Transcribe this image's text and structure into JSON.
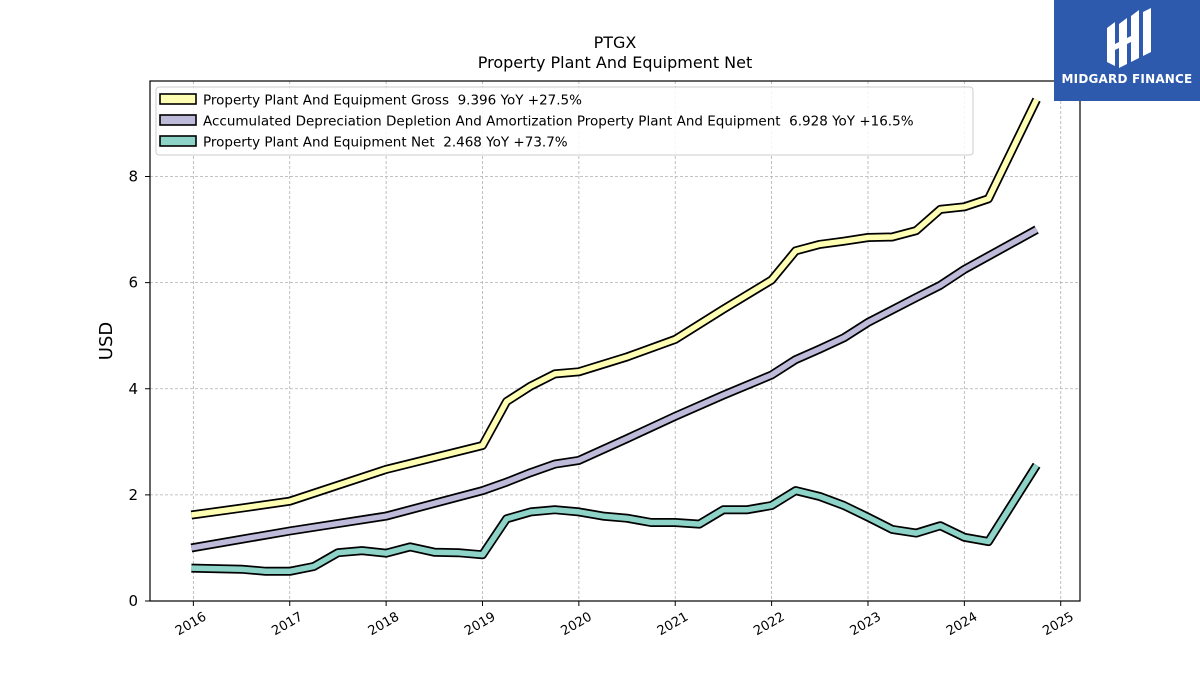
{
  "logo": {
    "text": "MIDGARD FINANCE"
  },
  "colors": {
    "gross": "#ffffb3",
    "depreciation": "#bebada",
    "net": "#8dd3c7",
    "outline": "#000000",
    "grid": "#b0b0b0",
    "logo_bg": "#2d5aad"
  },
  "chart_data": {
    "type": "line",
    "title": "PTGX",
    "subtitle": "Property Plant And Equipment Net",
    "ylabel": "USD",
    "xlabel": "",
    "xlim": [
      2015.55,
      2025.2
    ],
    "ylim": [
      0,
      9.8
    ],
    "xticks": [
      2016,
      2017,
      2018,
      2019,
      2020,
      2021,
      2022,
      2023,
      2024,
      2025
    ],
    "xtick_labels": [
      "2016",
      "2017",
      "2018",
      "2019",
      "2020",
      "2021",
      "2022",
      "2023",
      "2024",
      "2025"
    ],
    "yticks": [
      0,
      2,
      4,
      6,
      8
    ],
    "ytick_labels": [
      "0",
      "2",
      "4",
      "6",
      "8"
    ],
    "grid": true,
    "legend_position": "top-left",
    "series": [
      {
        "key": "gross",
        "name": "Property Plant And Equipment Gross  9.396 YoY +27.5%",
        "points": [
          [
            2015.98,
            1.62
          ],
          [
            2016.5,
            1.75
          ],
          [
            2017.0,
            1.88
          ],
          [
            2018.0,
            2.48
          ],
          [
            2019.0,
            2.93
          ],
          [
            2019.25,
            3.76
          ],
          [
            2019.5,
            4.05
          ],
          [
            2019.75,
            4.28
          ],
          [
            2020.0,
            4.32
          ],
          [
            2020.5,
            4.6
          ],
          [
            2021.0,
            4.93
          ],
          [
            2021.5,
            5.5
          ],
          [
            2022.0,
            6.05
          ],
          [
            2022.25,
            6.6
          ],
          [
            2022.5,
            6.72
          ],
          [
            2022.75,
            6.78
          ],
          [
            2023.0,
            6.85
          ],
          [
            2023.25,
            6.86
          ],
          [
            2023.5,
            6.98
          ],
          [
            2023.75,
            7.38
          ],
          [
            2024.0,
            7.43
          ],
          [
            2024.25,
            7.58
          ],
          [
            2024.75,
            9.45
          ]
        ]
      },
      {
        "key": "depreciation",
        "name": "Accumulated Depreciation Depletion And Amortization Property Plant And Equipment  6.928 YoY +16.5%",
        "points": [
          [
            2015.98,
            1.0
          ],
          [
            2017.0,
            1.32
          ],
          [
            2018.0,
            1.6
          ],
          [
            2019.0,
            2.08
          ],
          [
            2019.25,
            2.24
          ],
          [
            2019.5,
            2.42
          ],
          [
            2019.75,
            2.58
          ],
          [
            2020.0,
            2.65
          ],
          [
            2020.5,
            3.06
          ],
          [
            2021.0,
            3.48
          ],
          [
            2021.5,
            3.88
          ],
          [
            2022.0,
            4.26
          ],
          [
            2022.25,
            4.55
          ],
          [
            2022.5,
            4.75
          ],
          [
            2022.75,
            4.96
          ],
          [
            2023.0,
            5.25
          ],
          [
            2023.5,
            5.72
          ],
          [
            2023.75,
            5.95
          ],
          [
            2024.0,
            6.25
          ],
          [
            2024.75,
            7.0
          ]
        ]
      },
      {
        "key": "net",
        "name": "Property Plant And Equipment Net  2.468 YoY +73.7%",
        "points": [
          [
            2015.98,
            0.62
          ],
          [
            2016.5,
            0.6
          ],
          [
            2016.75,
            0.56
          ],
          [
            2017.0,
            0.56
          ],
          [
            2017.25,
            0.65
          ],
          [
            2017.5,
            0.91
          ],
          [
            2017.75,
            0.95
          ],
          [
            2018.0,
            0.9
          ],
          [
            2018.25,
            1.02
          ],
          [
            2018.5,
            0.92
          ],
          [
            2018.75,
            0.91
          ],
          [
            2019.0,
            0.87
          ],
          [
            2019.25,
            1.55
          ],
          [
            2019.5,
            1.68
          ],
          [
            2019.75,
            1.72
          ],
          [
            2020.0,
            1.68
          ],
          [
            2020.25,
            1.6
          ],
          [
            2020.5,
            1.56
          ],
          [
            2020.75,
            1.48
          ],
          [
            2021.0,
            1.48
          ],
          [
            2021.25,
            1.45
          ],
          [
            2021.5,
            1.72
          ],
          [
            2021.75,
            1.72
          ],
          [
            2022.0,
            1.8
          ],
          [
            2022.25,
            2.08
          ],
          [
            2022.5,
            1.97
          ],
          [
            2022.75,
            1.8
          ],
          [
            2023.0,
            1.58
          ],
          [
            2023.25,
            1.35
          ],
          [
            2023.5,
            1.28
          ],
          [
            2023.75,
            1.42
          ],
          [
            2024.0,
            1.2
          ],
          [
            2024.25,
            1.12
          ],
          [
            2024.75,
            2.56
          ]
        ]
      }
    ]
  }
}
